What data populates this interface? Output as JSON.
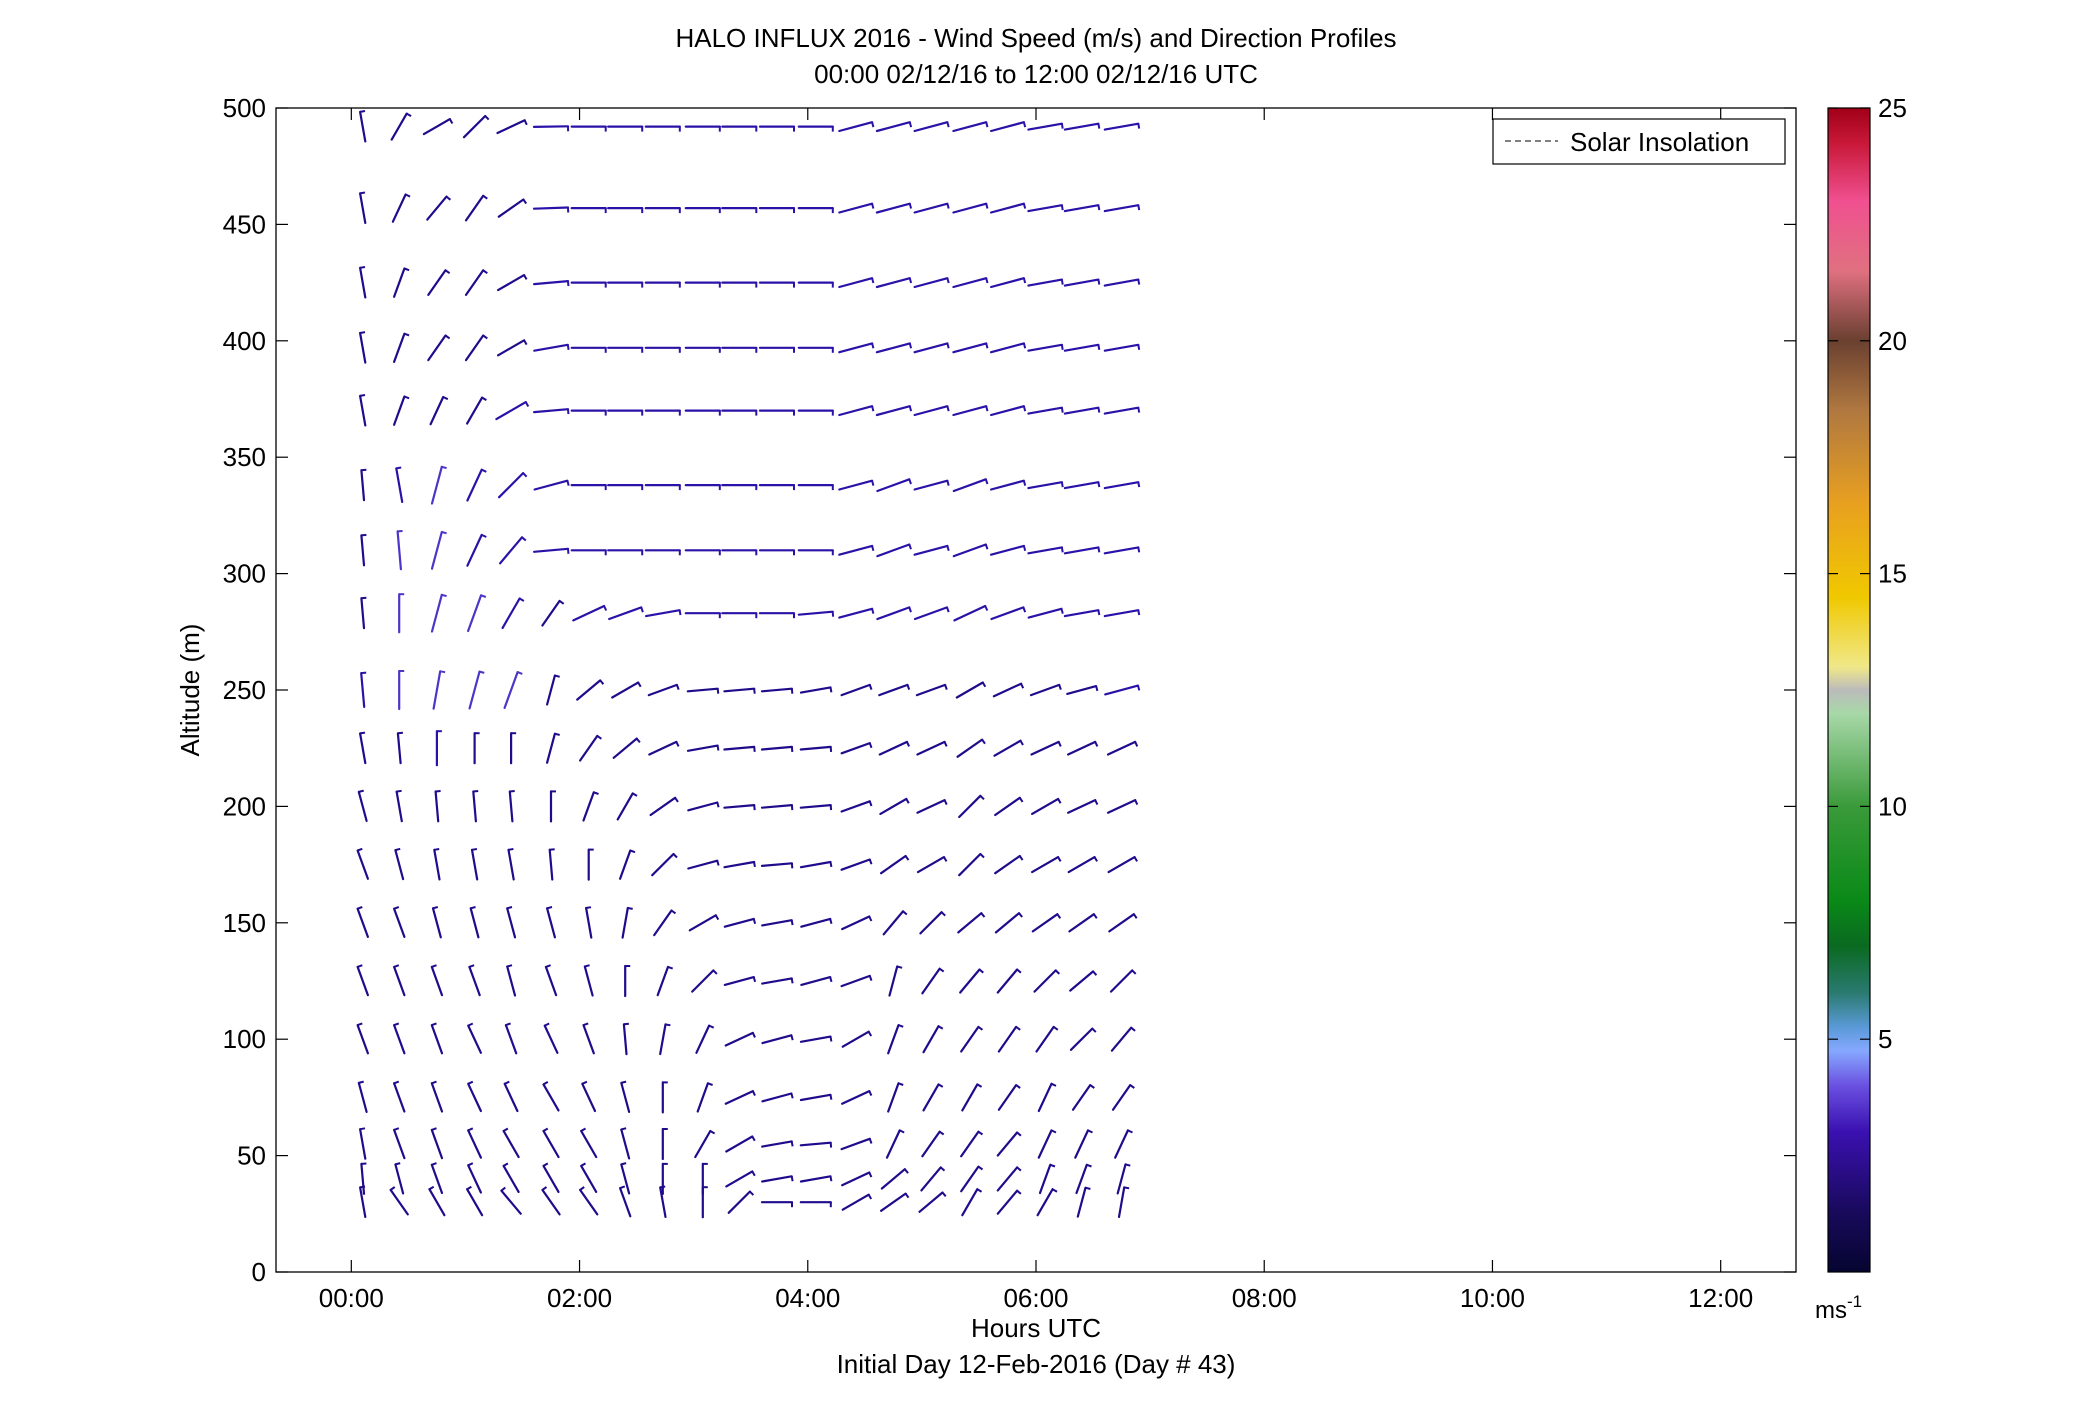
{
  "figure": {
    "title_line1": "HALO INFLUX 2016 - Wind Speed (m/s) and Direction Profiles",
    "title_line2": "00:00 02/12/16 to 12:00 02/12/16  UTC",
    "xlabel": "Hours UTC",
    "footer": "Initial Day 12-Feb-2016 (Day # 43)"
  },
  "legend": {
    "label": "Solar Insolation",
    "placement": "top-right",
    "line_color": "#808080"
  },
  "colorbar": {
    "unit_base": "ms",
    "unit_exp": "-1",
    "range": [
      0,
      25
    ],
    "ticks": [
      "5",
      "10",
      "15",
      "20",
      "25"
    ],
    "tick_values": [
      5,
      10,
      15,
      20,
      25
    ]
  },
  "chart_data": {
    "type": "wind-barb",
    "title": "HALO INFLUX 2016 - Wind Speed (m/s) and Direction Profiles",
    "subtitle": "00:00 02/12/16 to 12:00 02/12/16  UTC",
    "xlabel": "Hours UTC",
    "ylabel": "Altitude (m)",
    "xlim": [
      -0.66,
      12.66
    ],
    "ylim": [
      0,
      500
    ],
    "x_ticks": [
      0,
      2,
      4,
      6,
      8,
      10,
      12
    ],
    "x_tick_labels": [
      "00:00",
      "02:00",
      "04:00",
      "06:00",
      "08:00",
      "10:00",
      "12:00"
    ],
    "y_ticks": [
      0,
      50,
      100,
      150,
      200,
      250,
      300,
      350,
      400,
      450,
      500
    ],
    "y_tick_labels": [
      "0",
      "50",
      "100",
      "150",
      "200",
      "250",
      "300",
      "350",
      "400",
      "450",
      "500"
    ],
    "grid": false,
    "color_scale": "wind speed, 0-25 ms-1",
    "times_hours": [
      0.1,
      0.42,
      0.75,
      1.08,
      1.4,
      1.75,
      2.08,
      2.4,
      2.73,
      3.08,
      3.4,
      3.73,
      4.07,
      4.42,
      4.75,
      5.08,
      5.42,
      5.75,
      6.08,
      6.4,
      6.75
    ],
    "altitudes_m": [
      30,
      40,
      55,
      75,
      100,
      125,
      150,
      175,
      200,
      225,
      250,
      283,
      310,
      338,
      370,
      397,
      425,
      457,
      492
    ],
    "series": [
      {
        "profile_hour": 0.1,
        "direction_deg": [
          350,
          355,
          350,
          345,
          340,
          340,
          340,
          340,
          345,
          350,
          355,
          355,
          355,
          355,
          350,
          350,
          350,
          350,
          350
        ],
        "speed_ms": [
          2,
          2,
          2,
          2,
          2,
          2,
          2,
          2,
          2,
          2,
          3,
          2,
          2,
          2,
          2,
          2,
          2,
          2,
          2
        ]
      },
      {
        "profile_hour": 0.42,
        "direction_deg": [
          325,
          345,
          340,
          340,
          340,
          340,
          340,
          345,
          350,
          355,
          360,
          360,
          355,
          350,
          20,
          20,
          20,
          25,
          30
        ],
        "speed_ms": [
          2,
          2,
          2,
          2,
          2,
          2,
          2,
          2,
          2,
          2,
          4,
          4,
          4,
          3,
          2,
          2,
          2,
          2,
          2
        ]
      },
      {
        "profile_hour": 0.75,
        "direction_deg": [
          330,
          340,
          340,
          340,
          340,
          340,
          345,
          350,
          355,
          360,
          10,
          15,
          15,
          15,
          25,
          35,
          35,
          40,
          60
        ],
        "speed_ms": [
          2,
          2,
          2,
          2,
          2,
          2,
          2,
          2,
          2,
          3,
          4,
          4,
          4,
          4,
          2,
          2,
          2,
          2,
          2
        ]
      },
      {
        "profile_hour": 1.08,
        "direction_deg": [
          330,
          335,
          335,
          335,
          335,
          340,
          345,
          350,
          355,
          360,
          15,
          20,
          25,
          25,
          30,
          35,
          35,
          35,
          45
        ],
        "speed_ms": [
          2,
          2,
          2,
          2,
          2,
          2,
          2,
          2,
          2,
          2,
          4,
          4,
          3,
          3,
          2,
          2,
          2,
          2,
          2
        ]
      },
      {
        "profile_hour": 1.4,
        "direction_deg": [
          320,
          330,
          330,
          335,
          340,
          345,
          345,
          350,
          355,
          360,
          20,
          30,
          40,
          45,
          60,
          60,
          60,
          55,
          65
        ],
        "speed_ms": [
          2,
          2,
          2,
          2,
          2,
          2,
          2,
          2,
          2,
          2,
          4,
          3,
          3,
          3,
          3,
          2,
          2,
          2,
          2
        ]
      },
      {
        "profile_hour": 1.75,
        "direction_deg": [
          325,
          330,
          330,
          330,
          335,
          340,
          345,
          355,
          360,
          15,
          15,
          35,
          85,
          75,
          85,
          80,
          85,
          88,
          89
        ],
        "speed_ms": [
          2,
          2,
          2,
          2,
          2,
          2,
          2,
          2,
          2,
          2,
          2,
          2,
          3,
          3,
          3,
          3,
          3,
          3,
          3
        ]
      },
      {
        "profile_hour": 2.08,
        "direction_deg": [
          325,
          330,
          330,
          335,
          340,
          345,
          350,
          360,
          20,
          35,
          50,
          65,
          90,
          90,
          90,
          90,
          90,
          90,
          90
        ],
        "speed_ms": [
          2,
          2,
          2,
          2,
          2,
          2,
          2,
          2,
          2,
          2,
          2,
          3,
          3,
          3,
          3,
          3,
          3,
          3,
          3
        ]
      },
      {
        "profile_hour": 2.4,
        "direction_deg": [
          340,
          345,
          345,
          345,
          355,
          360,
          10,
          20,
          30,
          50,
          60,
          70,
          90,
          90,
          90,
          90,
          90,
          90,
          90
        ],
        "speed_ms": [
          2,
          2,
          2,
          2,
          2,
          2,
          2,
          2,
          2,
          2,
          2,
          3,
          3,
          3,
          3,
          3,
          3,
          3,
          3
        ]
      },
      {
        "profile_hour": 2.73,
        "direction_deg": [
          350,
          360,
          360,
          360,
          10,
          20,
          35,
          45,
          55,
          65,
          70,
          80,
          90,
          90,
          90,
          90,
          90,
          90,
          90
        ],
        "speed_ms": [
          2,
          2,
          2,
          2,
          2,
          2,
          2,
          2,
          2,
          2,
          2,
          3,
          3,
          3,
          3,
          3,
          3,
          3,
          3
        ]
      },
      {
        "profile_hour": 3.08,
        "direction_deg": [
          360,
          360,
          30,
          20,
          25,
          45,
          60,
          75,
          75,
          80,
          85,
          90,
          90,
          90,
          90,
          90,
          90,
          90,
          90
        ],
        "speed_ms": [
          2,
          2,
          2,
          2,
          2,
          2,
          2,
          2,
          2,
          2,
          2,
          3,
          3,
          3,
          3,
          3,
          3,
          3,
          3
        ]
      },
      {
        "profile_hour": 3.4,
        "direction_deg": [
          45,
          60,
          60,
          65,
          65,
          75,
          75,
          80,
          85,
          85,
          85,
          90,
          90,
          90,
          90,
          90,
          90,
          90,
          90
        ],
        "speed_ms": [
          2,
          2,
          2,
          2,
          2,
          2,
          2,
          2,
          2,
          2,
          2,
          3,
          3,
          3,
          3,
          3,
          3,
          3,
          3
        ]
      },
      {
        "profile_hour": 3.73,
        "direction_deg": [
          90,
          80,
          80,
          75,
          75,
          80,
          80,
          85,
          85,
          85,
          85,
          90,
          90,
          90,
          90,
          90,
          90,
          90,
          90
        ],
        "speed_ms": [
          2,
          2,
          2,
          2,
          2,
          2,
          2,
          2,
          2,
          2,
          2,
          3,
          3,
          3,
          3,
          3,
          3,
          3,
          3
        ]
      },
      {
        "profile_hour": 4.07,
        "direction_deg": [
          90,
          80,
          85,
          80,
          80,
          75,
          75,
          80,
          85,
          85,
          80,
          85,
          90,
          90,
          90,
          90,
          90,
          90,
          90
        ],
        "speed_ms": [
          2,
          2,
          2,
          2,
          2,
          2,
          2,
          2,
          2,
          2,
          2,
          3,
          3,
          3,
          3,
          3,
          3,
          3,
          3
        ]
      },
      {
        "profile_hour": 4.42,
        "direction_deg": [
          60,
          65,
          70,
          65,
          60,
          70,
          65,
          70,
          70,
          70,
          70,
          75,
          75,
          75,
          75,
          75,
          75,
          75,
          75
        ],
        "speed_ms": [
          2,
          2,
          2,
          2,
          2,
          2,
          2,
          2,
          2,
          2,
          2,
          3,
          3,
          3,
          3,
          3,
          3,
          3,
          3
        ]
      },
      {
        "profile_hour": 4.75,
        "direction_deg": [
          55,
          50,
          25,
          20,
          20,
          15,
          40,
          55,
          60,
          65,
          70,
          70,
          70,
          70,
          75,
          75,
          75,
          75,
          75
        ],
        "speed_ms": [
          2,
          2,
          2,
          2,
          2,
          2,
          2,
          2,
          2,
          2,
          2,
          3,
          3,
          3,
          3,
          3,
          3,
          3,
          3
        ]
      },
      {
        "profile_hour": 5.08,
        "direction_deg": [
          50,
          40,
          35,
          30,
          30,
          35,
          45,
          60,
          65,
          65,
          70,
          70,
          75,
          75,
          75,
          75,
          75,
          75,
          75
        ],
        "speed_ms": [
          2,
          2,
          2,
          2,
          2,
          2,
          2,
          2,
          2,
          2,
          2,
          3,
          3,
          3,
          3,
          3,
          3,
          3,
          3
        ]
      },
      {
        "profile_hour": 5.42,
        "direction_deg": [
          30,
          35,
          35,
          30,
          35,
          40,
          50,
          45,
          45,
          55,
          60,
          65,
          70,
          70,
          75,
          75,
          75,
          75,
          75
        ],
        "speed_ms": [
          2,
          2,
          2,
          2,
          2,
          2,
          2,
          2,
          2,
          2,
          2,
          3,
          3,
          3,
          3,
          3,
          3,
          3,
          3
        ]
      },
      {
        "profile_hour": 5.75,
        "direction_deg": [
          40,
          40,
          40,
          35,
          35,
          40,
          50,
          55,
          55,
          60,
          65,
          70,
          75,
          75,
          75,
          75,
          75,
          75,
          75
        ],
        "speed_ms": [
          2,
          2,
          2,
          2,
          2,
          2,
          2,
          2,
          2,
          2,
          2,
          3,
          3,
          3,
          3,
          3,
          3,
          3,
          3
        ]
      },
      {
        "profile_hour": 6.08,
        "direction_deg": [
          30,
          20,
          25,
          25,
          35,
          45,
          55,
          60,
          60,
          65,
          70,
          75,
          80,
          80,
          80,
          80,
          80,
          80,
          80
        ],
        "speed_ms": [
          2,
          2,
          2,
          2,
          2,
          2,
          2,
          2,
          2,
          2,
          2,
          3,
          3,
          3,
          3,
          3,
          3,
          3,
          3
        ]
      },
      {
        "profile_hour": 6.4,
        "direction_deg": [
          15,
          20,
          25,
          35,
          45,
          50,
          55,
          60,
          65,
          65,
          75,
          80,
          80,
          80,
          80,
          80,
          80,
          80,
          80
        ],
        "speed_ms": [
          2,
          2,
          2,
          2,
          2,
          2,
          2,
          2,
          2,
          2,
          2,
          3,
          3,
          3,
          3,
          3,
          3,
          3,
          3
        ]
      },
      {
        "profile_hour": 6.75,
        "direction_deg": [
          10,
          15,
          25,
          35,
          40,
          45,
          55,
          60,
          65,
          65,
          75,
          80,
          80,
          80,
          80,
          80,
          80,
          80,
          80
        ],
        "speed_ms": [
          2,
          2,
          2,
          2,
          2,
          2,
          2,
          2,
          2,
          2,
          3,
          3,
          3,
          3,
          3,
          3,
          3,
          3,
          3
        ]
      }
    ]
  }
}
